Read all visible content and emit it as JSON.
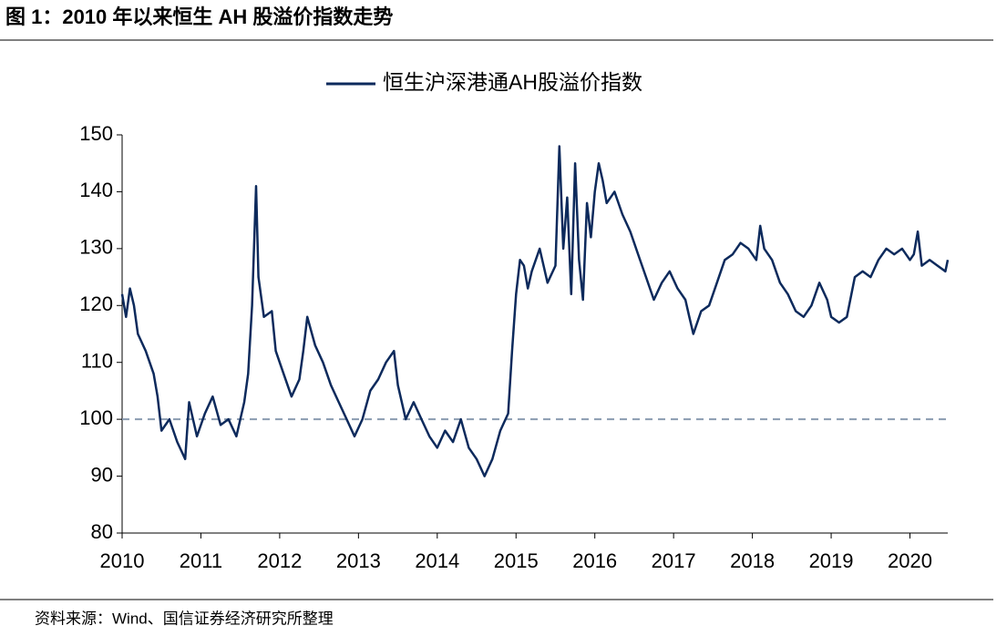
{
  "chart_data": {
    "type": "line",
    "title": "图 1：2010 年以来恒生 AH 股溢价指数走势",
    "source": "资料来源：Wind、国信证券经济研究所整理",
    "x": [
      2010.0,
      2010.05,
      2010.1,
      2010.15,
      2010.2,
      2010.3,
      2010.4,
      2010.45,
      2010.5,
      2010.6,
      2010.7,
      2010.8,
      2010.85,
      2010.95,
      2011.05,
      2011.15,
      2011.25,
      2011.35,
      2011.45,
      2011.55,
      2011.6,
      2011.65,
      2011.7,
      2011.73,
      2011.8,
      2011.9,
      2011.95,
      2012.05,
      2012.15,
      2012.25,
      2012.3,
      2012.35,
      2012.45,
      2012.55,
      2012.65,
      2012.75,
      2012.85,
      2012.95,
      2013.05,
      2013.15,
      2013.25,
      2013.35,
      2013.45,
      2013.5,
      2013.6,
      2013.7,
      2013.8,
      2013.9,
      2014.0,
      2014.1,
      2014.2,
      2014.3,
      2014.4,
      2014.5,
      2014.6,
      2014.7,
      2014.8,
      2014.9,
      2014.95,
      2015.0,
      2015.05,
      2015.1,
      2015.15,
      2015.2,
      2015.3,
      2015.35,
      2015.4,
      2015.5,
      2015.55,
      2015.6,
      2015.65,
      2015.7,
      2015.75,
      2015.8,
      2015.85,
      2015.9,
      2015.95,
      2016.0,
      2016.05,
      2016.1,
      2016.15,
      2016.25,
      2016.35,
      2016.45,
      2016.55,
      2016.65,
      2016.75,
      2016.85,
      2016.95,
      2017.05,
      2017.15,
      2017.2,
      2017.25,
      2017.35,
      2017.45,
      2017.55,
      2017.65,
      2017.75,
      2017.85,
      2017.95,
      2018.05,
      2018.1,
      2018.15,
      2018.25,
      2018.35,
      2018.45,
      2018.55,
      2018.65,
      2018.75,
      2018.85,
      2018.95,
      2019.0,
      2019.1,
      2019.2,
      2019.3,
      2019.4,
      2019.5,
      2019.6,
      2019.7,
      2019.8,
      2019.9,
      2020.0,
      2020.05,
      2020.1,
      2020.15,
      2020.25,
      2020.35,
      2020.45,
      2020.48
    ],
    "series": [
      {
        "name": "恒生沪深港通AH股溢价指数",
        "color": "#0d2a5c",
        "values": [
          122,
          118,
          123,
          120,
          115,
          112,
          108,
          104,
          98,
          100,
          96,
          93,
          103,
          97,
          101,
          104,
          99,
          100,
          97,
          103,
          108,
          120,
          141,
          125,
          118,
          119,
          112,
          108,
          104,
          107,
          112,
          118,
          113,
          110,
          106,
          103,
          100,
          97,
          100,
          105,
          107,
          110,
          112,
          106,
          100,
          103,
          100,
          97,
          95,
          98,
          96,
          100,
          95,
          93,
          90,
          93,
          98,
          101,
          112,
          122,
          128,
          127,
          123,
          126,
          130,
          127,
          124,
          127,
          148,
          130,
          139,
          122,
          145,
          128,
          121,
          138,
          132,
          140,
          145,
          142,
          138,
          140,
          136,
          133,
          129,
          125,
          121,
          124,
          126,
          123,
          121,
          118,
          115,
          119,
          120,
          124,
          128,
          129,
          131,
          130,
          128,
          134,
          130,
          128,
          124,
          122,
          119,
          118,
          120,
          124,
          121,
          118,
          117,
          118,
          125,
          126,
          125,
          128,
          130,
          129,
          130,
          128,
          129,
          133,
          127,
          128,
          127,
          126,
          128
        ]
      }
    ],
    "xlim": [
      2010,
      2020.48
    ],
    "xticks": [
      2010,
      2011,
      2012,
      2013,
      2014,
      2015,
      2016,
      2017,
      2018,
      2019,
      2020
    ],
    "ylim": [
      80,
      150
    ],
    "yticks": [
      80,
      90,
      100,
      110,
      120,
      130,
      140,
      150
    ],
    "reference_line": {
      "value": 100,
      "color": "#8a9bb0"
    }
  }
}
